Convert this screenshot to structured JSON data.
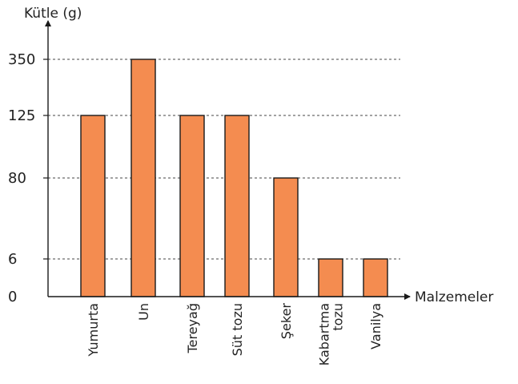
{
  "chart_data": {
    "type": "bar",
    "ylabel": "Kütle (g)",
    "xlabel": "Malzemeler",
    "categories": [
      "Yumurta",
      "Un",
      "Tereyağ",
      "Süt tozu",
      "Şeker",
      "Kabartma tozu",
      "Vanilya"
    ],
    "category_label_lines": [
      [
        "Yumurta"
      ],
      [
        "Un"
      ],
      [
        "Tereyağ"
      ],
      [
        "Süt tozu"
      ],
      [
        "Şeker"
      ],
      [
        "Kabartma",
        "tozu"
      ],
      [
        "Vanilya"
      ]
    ],
    "values": [
      125,
      350,
      125,
      125,
      80,
      6,
      6
    ],
    "y_ticks": [
      0,
      6,
      80,
      125,
      350
    ],
    "axis_scale": "non-uniform (categorical tick levels)",
    "grid": "dashed reference lines at tick values",
    "colors": {
      "bar_fill": "#f48c50",
      "bar_stroke": "#1a1a1a",
      "axis": "#1a1a1a",
      "gridline": "#444444"
    }
  }
}
